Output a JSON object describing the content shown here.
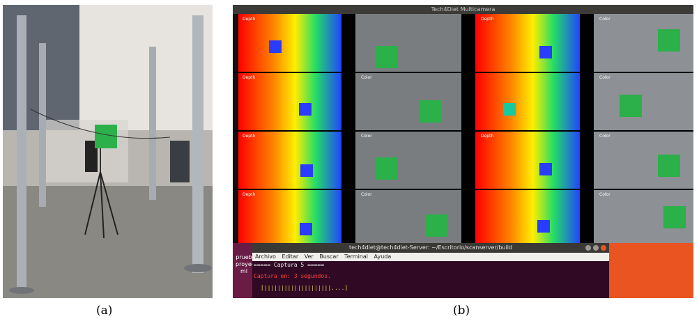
{
  "captions": {
    "a": "(a)",
    "b": "(b)"
  },
  "window": {
    "title": "Tech4Diet Multicamera"
  },
  "tiles": {
    "depth_label": "Depth",
    "color_label": "Color"
  },
  "terminal": {
    "title": "tech4diet@tech4diet-Server: ~/Escritorio/scanserver/build",
    "menu": [
      "Archivo",
      "Editar",
      "Ver",
      "Buscar",
      "Terminal",
      "Ayuda"
    ],
    "lines": [
      "===== Captura 5 =====",
      "Captura en: 3 segundos."
    ],
    "progress": "[||||||||||||||||||||....]"
  },
  "desktop": {
    "icon_label_1": "prueb",
    "icon_label_2": "proyec",
    "icon_label_3": "ml"
  },
  "colors": {
    "accent_orange": "#e95420",
    "terminal_bg": "#300a24",
    "cube_green": "#2bb04a"
  }
}
